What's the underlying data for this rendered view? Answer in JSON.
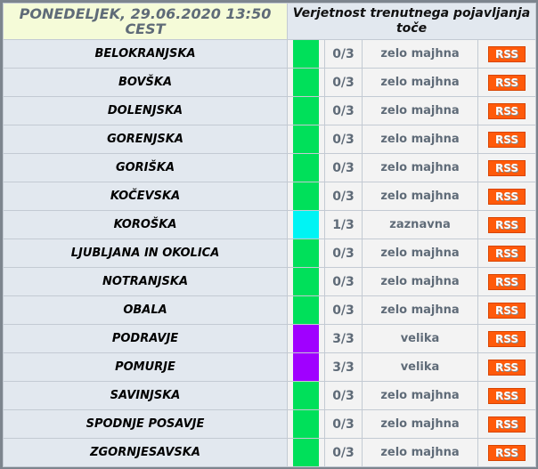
{
  "header": {
    "date": "PONEDELJEK, 29.06.2020 13:50 CEST",
    "title": "Verjetnost trenutnega pojavljanja toče"
  },
  "colors": {
    "zelo majhna": "#00e05a",
    "zaznavna": "#00f4f4",
    "velika": "#a000ff"
  },
  "rss_label": "RSS",
  "regions": [
    {
      "name": "BELOKRANJSKA",
      "score": "0/3",
      "level": "zelo majhna"
    },
    {
      "name": "BOVŠKA",
      "score": "0/3",
      "level": "zelo majhna"
    },
    {
      "name": "DOLENJSKA",
      "score": "0/3",
      "level": "zelo majhna"
    },
    {
      "name": "GORENJSKA",
      "score": "0/3",
      "level": "zelo majhna"
    },
    {
      "name": "GORIŠKA",
      "score": "0/3",
      "level": "zelo majhna"
    },
    {
      "name": "KOČEVSKA",
      "score": "0/3",
      "level": "zelo majhna"
    },
    {
      "name": "KOROŠKA",
      "score": "1/3",
      "level": "zaznavna"
    },
    {
      "name": "LJUBLJANA IN OKOLICA",
      "score": "0/3",
      "level": "zelo majhna"
    },
    {
      "name": "NOTRANJSKA",
      "score": "0/3",
      "level": "zelo majhna"
    },
    {
      "name": "OBALA",
      "score": "0/3",
      "level": "zelo majhna"
    },
    {
      "name": "PODRAVJE",
      "score": "3/3",
      "level": "velika"
    },
    {
      "name": "POMURJE",
      "score": "3/3",
      "level": "velika"
    },
    {
      "name": "SAVINJSKA",
      "score": "0/3",
      "level": "zelo majhna"
    },
    {
      "name": "SPODNJE POSAVJE",
      "score": "0/3",
      "level": "zelo majhna"
    },
    {
      "name": "ZGORNJESAVSKA",
      "score": "0/3",
      "level": "zelo majhna"
    }
  ]
}
